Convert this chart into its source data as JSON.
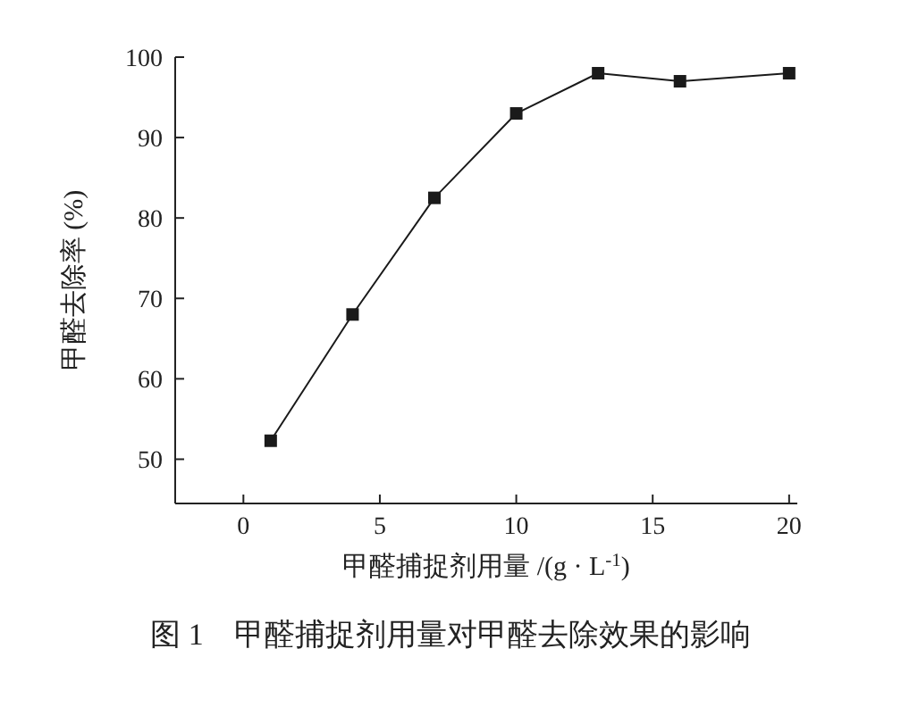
{
  "chart_data": {
    "type": "line",
    "title": "图 1　甲醛捕捉剂用量对甲醛去除效果的影响",
    "xlabel": "甲醛捕捉剂用量 /(g · L$^{-1}$)",
    "ylabel": "甲醛去除率 (%)",
    "x": [
      1,
      4,
      7,
      10,
      13,
      16,
      20
    ],
    "series": [
      {
        "color": "#1a1a1a",
        "values": [
          52.3,
          68,
          82.5,
          93,
          98,
          97,
          98
        ]
      }
    ],
    "xlim": [
      -2.5,
      20.3
    ],
    "xticks": [
      0,
      5,
      10,
      15,
      20
    ],
    "ylim": [
      44.5,
      100
    ],
    "yticks": [
      50,
      60,
      70,
      80,
      90,
      100
    ],
    "grid": false,
    "legend": false,
    "marker": "square",
    "line_style": "solid"
  }
}
